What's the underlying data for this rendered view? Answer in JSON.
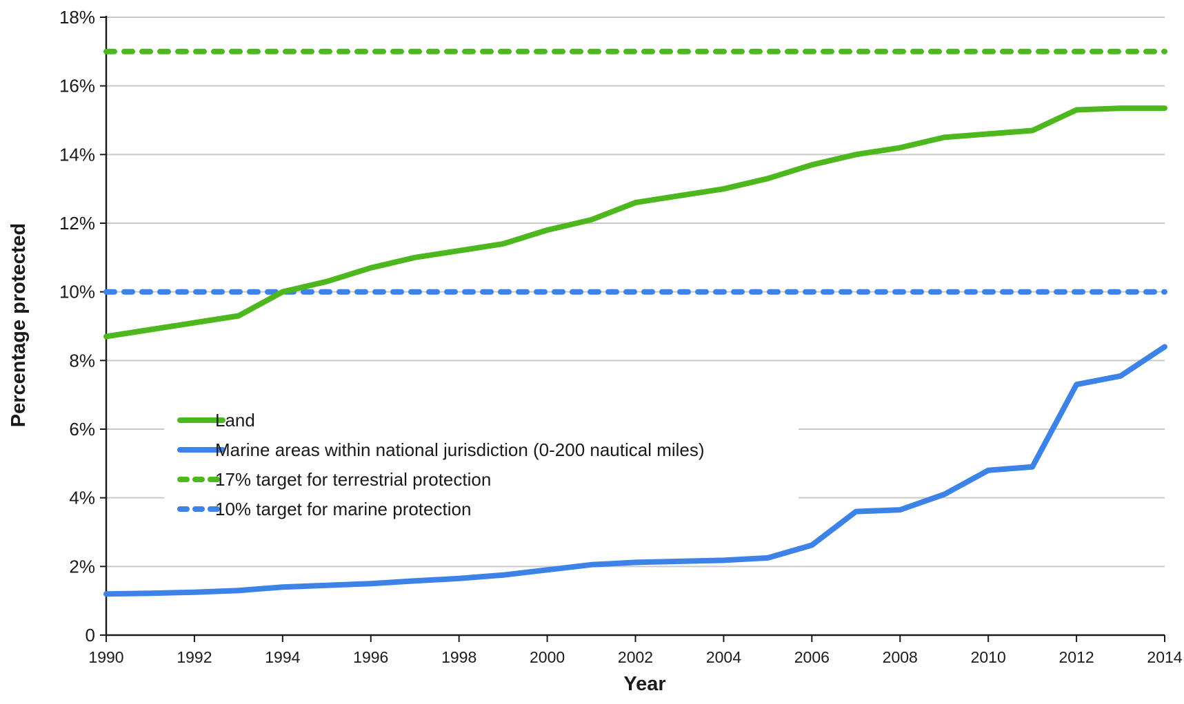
{
  "chart_data": {
    "type": "line",
    "title": "",
    "xlabel": "Year",
    "ylabel": "Percentage protected",
    "xlim": [
      1990,
      2014
    ],
    "ylim": [
      0,
      18
    ],
    "grid": true,
    "legend_position": "center-left",
    "x_ticks": [
      1990,
      1992,
      1994,
      1996,
      1998,
      2000,
      2002,
      2004,
      2006,
      2008,
      2010,
      2012,
      2014
    ],
    "x_tick_labels": [
      "1990",
      "1992",
      "1994",
      "1996",
      "1998",
      "2000",
      "2002",
      "2004",
      "2006",
      "2008",
      "2010",
      "2012",
      "2014"
    ],
    "y_ticks": [
      0,
      2,
      4,
      6,
      8,
      10,
      12,
      14,
      16,
      18
    ],
    "y_tick_labels": [
      "0",
      "2%",
      "4%",
      "6%",
      "8%",
      "10%",
      "12%",
      "14%",
      "16%",
      "18%"
    ],
    "x": [
      1990,
      1991,
      1992,
      1993,
      1994,
      1995,
      1996,
      1997,
      1998,
      1999,
      2000,
      2001,
      2002,
      2003,
      2004,
      2005,
      2006,
      2007,
      2008,
      2009,
      2010,
      2011,
      2012,
      2013,
      2014
    ],
    "series": [
      {
        "name": "Land",
        "style": "solid",
        "color": "#4db81e",
        "values": [
          8.7,
          8.9,
          9.1,
          9.3,
          10.0,
          10.3,
          10.7,
          11.0,
          11.2,
          11.4,
          11.8,
          12.1,
          12.6,
          12.8,
          13.0,
          13.3,
          13.7,
          14.0,
          14.2,
          14.5,
          14.6,
          14.7,
          15.3,
          15.35,
          15.35
        ]
      },
      {
        "name": "Marine areas within national jurisdiction (0-200 nautical miles)",
        "style": "solid",
        "color": "#3d82e6",
        "values": [
          1.2,
          1.22,
          1.25,
          1.3,
          1.4,
          1.45,
          1.5,
          1.58,
          1.65,
          1.75,
          1.9,
          2.05,
          2.12,
          2.15,
          2.18,
          2.25,
          2.62,
          3.6,
          3.65,
          4.1,
          4.8,
          4.9,
          7.3,
          7.55,
          8.4
        ]
      },
      {
        "name": "17% target for terrestrial protection",
        "style": "dashed",
        "color": "#4db81e",
        "values": [
          17,
          17,
          17,
          17,
          17,
          17,
          17,
          17,
          17,
          17,
          17,
          17,
          17,
          17,
          17,
          17,
          17,
          17,
          17,
          17,
          17,
          17,
          17,
          17,
          17
        ]
      },
      {
        "name": "10% target for marine protection",
        "style": "dashed",
        "color": "#3d82e6",
        "values": [
          10,
          10,
          10,
          10,
          10,
          10,
          10,
          10,
          10,
          10,
          10,
          10,
          10,
          10,
          10,
          10,
          10,
          10,
          10,
          10,
          10,
          10,
          10,
          10,
          10
        ]
      }
    ]
  }
}
